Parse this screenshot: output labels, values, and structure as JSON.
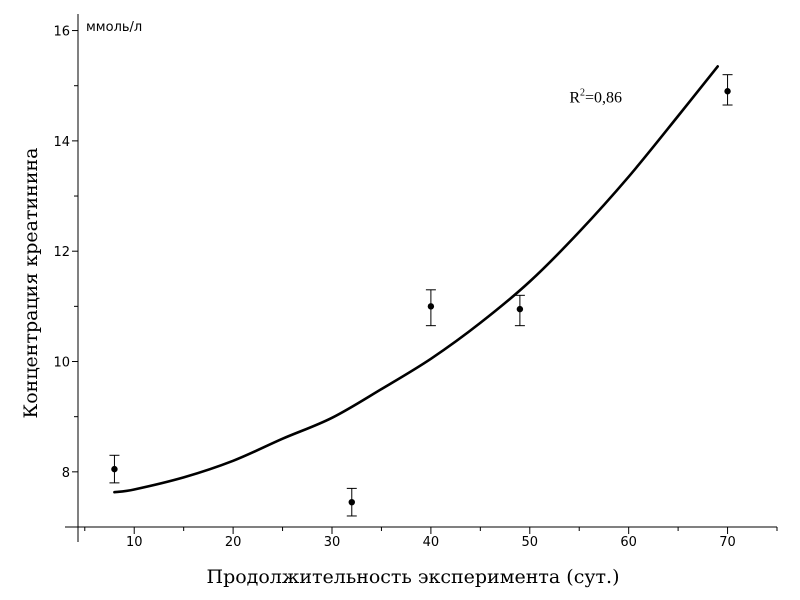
{
  "chart_data": {
    "type": "scatter",
    "title": "",
    "xlabel": "Продолжительность эксперимента (сут.)",
    "ylabel": "Концентрация креатинина",
    "y_unit": "ммоль/л",
    "xlim": [
      3,
      75
    ],
    "ylim": [
      7,
      16.3
    ],
    "x_ticks": [
      10,
      20,
      30,
      40,
      50,
      60,
      70
    ],
    "y_ticks": [
      8,
      10,
      12,
      14,
      16
    ],
    "x_tick_labels": [
      "10",
      "20",
      "30",
      "40",
      "50",
      "60",
      "70"
    ],
    "y_tick_labels": [
      "8",
      "10",
      "12",
      "14",
      "16"
    ],
    "grid": false,
    "series": [
      {
        "type": "scatter",
        "error_bars": true,
        "points": [
          {
            "x": 8,
            "y": 8.05,
            "err_low": 7.8,
            "err_high": 8.3
          },
          {
            "x": 32,
            "y": 7.45,
            "err_low": 7.2,
            "err_high": 7.7
          },
          {
            "x": 40,
            "y": 11.0,
            "err_low": 10.65,
            "err_high": 11.3
          },
          {
            "x": 49,
            "y": 10.95,
            "err_low": 10.65,
            "err_high": 11.2
          },
          {
            "x": 70,
            "y": 14.9,
            "err_low": 14.65,
            "err_high": 15.2
          }
        ]
      },
      {
        "type": "line",
        "fit": true,
        "x": [
          8,
          10,
          15,
          20,
          25,
          30,
          35,
          40,
          45,
          50,
          55,
          60,
          65,
          69
        ],
        "y": [
          7.63,
          7.68,
          7.9,
          8.2,
          8.6,
          8.98,
          9.5,
          10.05,
          10.7,
          11.45,
          12.35,
          13.35,
          14.45,
          15.35
        ]
      }
    ],
    "annotations": [
      {
        "text": "R²=0,86",
        "x": 54,
        "y": 14.8
      }
    ]
  }
}
